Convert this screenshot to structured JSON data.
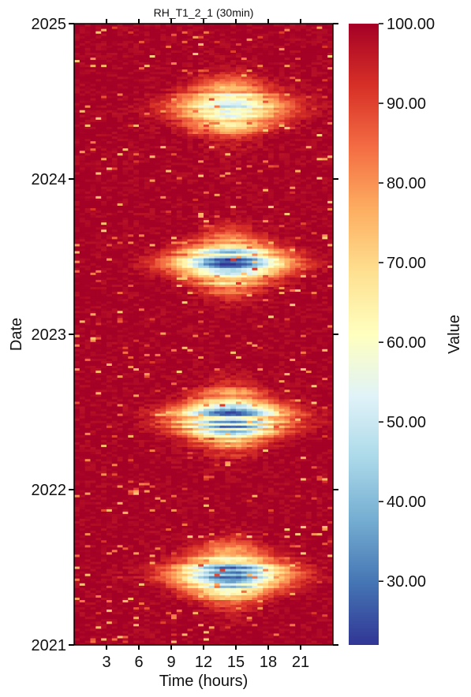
{
  "chart_data": {
    "type": "heatmap",
    "title": "RH_T1_2_1 (30min)",
    "xlabel": "Time (hours)",
    "ylabel": "Date",
    "x_ticks": [
      3,
      6,
      9,
      12,
      15,
      18,
      21
    ],
    "x_range": [
      0,
      24
    ],
    "y_ticks": [
      "2021",
      "2022",
      "2023",
      "2024",
      "2025"
    ],
    "y_range": [
      "2021",
      "2025"
    ],
    "colorbar": {
      "label": "Value",
      "colormap": "RdYlBu",
      "range": [
        22,
        100
      ],
      "ticks": [
        "100.00",
        "90.00",
        "80.00",
        "70.00",
        "60.00",
        "50.00",
        "40.00",
        "30.00"
      ],
      "tick_values": [
        100,
        90,
        80,
        70,
        60,
        50,
        40,
        30
      ]
    },
    "seasonal_minima": [
      {
        "year": 2021,
        "min_value": 30
      },
      {
        "year": 2022,
        "min_value": 28
      },
      {
        "year": 2023,
        "min_value": 30
      },
      {
        "year": 2024,
        "min_value": 48
      }
    ],
    "grid": false
  }
}
